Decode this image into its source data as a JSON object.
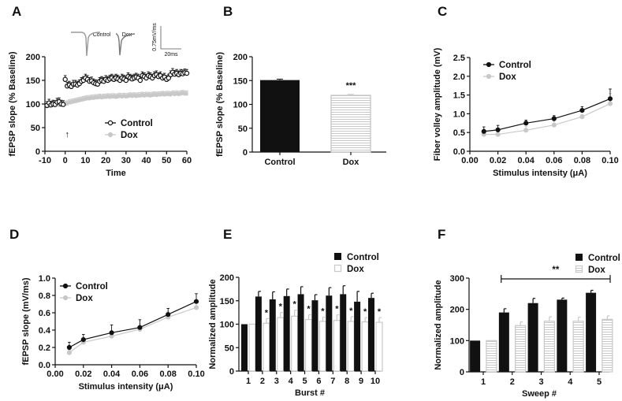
{
  "colors": {
    "control": "#111111",
    "dox": "#c8c8c8"
  },
  "chart_data": [
    {
      "panel": "A",
      "type": "line",
      "xlabel": "Time",
      "ylabel": "fEPSP slope (% Baseline)",
      "xlim": [
        -10,
        60
      ],
      "ylim": [
        0,
        200
      ],
      "xticks": [
        -10,
        0,
        10,
        20,
        30,
        40,
        50,
        60
      ],
      "yticks": [
        0,
        50,
        100,
        150,
        200
      ],
      "legend": [
        "Control",
        "Dox"
      ],
      "legend_position": "lower-right",
      "annotation": "↑",
      "inset": {
        "labels": [
          "Control",
          "Dox"
        ],
        "scale_y": "0.75mV/ms",
        "scale_x": "20ms"
      },
      "x": [
        -9,
        -8,
        -7,
        -6,
        -5,
        -4,
        -3,
        -2,
        -1,
        0,
        1,
        2,
        3,
        4,
        5,
        6,
        7,
        8,
        9,
        10,
        11,
        12,
        13,
        14,
        15,
        16,
        17,
        18,
        19,
        20,
        21,
        22,
        23,
        24,
        25,
        26,
        27,
        28,
        29,
        30,
        31,
        32,
        33,
        34,
        35,
        36,
        37,
        38,
        39,
        40,
        41,
        42,
        43,
        44,
        45,
        46,
        47,
        48,
        49,
        50,
        51,
        52,
        53,
        54,
        55,
        56,
        57,
        58,
        59,
        60
      ],
      "series": [
        {
          "name": "Control",
          "error": 8,
          "values": [
            97,
            102,
            98,
            100,
            99,
            104,
            105,
            100,
            99,
            152,
            138,
            140,
            137,
            142,
            142,
            140,
            143,
            148,
            150,
            155,
            152,
            148,
            149,
            145,
            143,
            142,
            148,
            150,
            148,
            152,
            150,
            153,
            155,
            152,
            155,
            153,
            150,
            155,
            153,
            150,
            158,
            155,
            153,
            155,
            157,
            155,
            150,
            160,
            158,
            155,
            160,
            158,
            155,
            160,
            162,
            158,
            160,
            155,
            157,
            152,
            155,
            162,
            167,
            163,
            165,
            162,
            165,
            164,
            166,
            165
          ]
        },
        {
          "name": "Dox",
          "error": 6,
          "values": [
            95,
            96,
            97,
            98,
            97,
            99,
            98,
            99,
            98,
            100,
            101,
            103,
            104,
            105,
            106,
            107,
            108,
            109,
            110,
            111,
            112,
            112,
            113,
            113,
            114,
            114,
            115,
            114,
            115,
            115,
            116,
            115,
            116,
            116,
            115,
            116,
            117,
            116,
            117,
            116,
            117,
            118,
            117,
            118,
            117,
            118,
            118,
            119,
            118,
            119,
            119,
            118,
            119,
            120,
            119,
            120,
            120,
            121,
            120,
            121,
            121,
            120,
            122,
            121,
            122,
            121,
            122,
            123,
            122,
            122
          ]
        }
      ]
    },
    {
      "panel": "B",
      "type": "bar",
      "ylabel": "fEPSP slope (% Baseline)",
      "ylim": [
        0,
        200
      ],
      "yticks": [
        0,
        50,
        100,
        150,
        200
      ],
      "categories": [
        "Control",
        "Dox"
      ],
      "values": [
        151,
        119
      ],
      "errors": [
        2,
        2
      ],
      "annotation": "***"
    },
    {
      "panel": "C",
      "type": "line",
      "xlabel": "Stimulus intensity (μA)",
      "ylabel": "Fiber volley amplitude (mV)",
      "xlim": [
        0,
        0.1
      ],
      "ylim": [
        0,
        2.5
      ],
      "xticks": [
        "0.00",
        "0.02",
        "0.04",
        "0.06",
        "0.08",
        "0.10"
      ],
      "yticks": [
        "0.0",
        "0.5",
        "1.0",
        "1.5",
        "2.0",
        "2.5"
      ],
      "legend": [
        "Control",
        "Dox"
      ],
      "legend_position": "top-left",
      "x": [
        0.01,
        0.02,
        0.04,
        0.06,
        0.08,
        0.1
      ],
      "series": [
        {
          "name": "Control",
          "values": [
            0.53,
            0.57,
            0.75,
            0.87,
            1.09,
            1.4
          ],
          "errors": [
            0.12,
            0.12,
            0.08,
            0.08,
            0.1,
            0.26
          ]
        },
        {
          "name": "Dox",
          "values": [
            0.45,
            0.45,
            0.56,
            0.7,
            0.92,
            1.27
          ],
          "errors": [
            0.06,
            0.05,
            0.1,
            0.1,
            0.06,
            0.27
          ]
        }
      ]
    },
    {
      "panel": "D",
      "type": "line",
      "xlabel": "Stimulus intensity (μA)",
      "ylabel": "fEPSP slope (mV/ms)",
      "xlim": [
        0,
        0.1
      ],
      "ylim": [
        0,
        1.0
      ],
      "xticks": [
        "0.00",
        "0.02",
        "0.04",
        "0.06",
        "0.08",
        "0.10"
      ],
      "yticks": [
        "0.0",
        "0.2",
        "0.4",
        "0.6",
        "0.8",
        "1.0"
      ],
      "legend": [
        "Control",
        "Dox"
      ],
      "legend_position": "top-left",
      "x": [
        0.01,
        0.02,
        0.04,
        0.06,
        0.08,
        0.1
      ],
      "series": [
        {
          "name": "Control",
          "values": [
            0.2,
            0.29,
            0.37,
            0.43,
            0.58,
            0.73
          ],
          "errors": [
            0.06,
            0.06,
            0.09,
            0.09,
            0.07,
            0.09
          ]
        },
        {
          "name": "Dox",
          "values": [
            0.14,
            0.26,
            0.33,
            0.41,
            0.55,
            0.66
          ],
          "errors": [
            0.03,
            0.05,
            0.05,
            0.06,
            0.06,
            0.08
          ]
        }
      ]
    },
    {
      "panel": "E",
      "type": "bar",
      "xlabel": "Burst #",
      "ylabel": "Normalized amplitude",
      "ylim": [
        0,
        200
      ],
      "yticks": [
        0,
        50,
        100,
        150,
        200
      ],
      "categories": [
        "1",
        "2",
        "3",
        "4",
        "5",
        "6",
        "7",
        "8",
        "9",
        "10"
      ],
      "legend": [
        "Control",
        "Dox"
      ],
      "legend_position": "top-right",
      "series": [
        {
          "name": "Control",
          "values": [
            100,
            159,
            153,
            160,
            164,
            151,
            161,
            164,
            148,
            156
          ],
          "errors": [
            0,
            11,
            16,
            15,
            16,
            12,
            17,
            18,
            22,
            10
          ]
        },
        {
          "name": "Dox",
          "values": [
            100,
            102,
            114,
            117,
            110,
            106,
            108,
            106,
            105,
            104
          ],
          "errors": [
            0,
            10,
            11,
            13,
            10,
            9,
            12,
            10,
            9,
            10
          ]
        }
      ],
      "annotation": "*"
    },
    {
      "panel": "F",
      "type": "bar",
      "xlabel": "Sweep #",
      "ylabel": "Normalized amplitude",
      "ylim": [
        0,
        300
      ],
      "yticks": [
        0,
        100,
        200,
        300
      ],
      "categories": [
        "1",
        "2",
        "3",
        "4",
        "5"
      ],
      "legend": [
        "Control",
        "Dox"
      ],
      "legend_position": "top-right",
      "series": [
        {
          "name": "Control",
          "values": [
            100,
            190,
            220,
            231,
            253
          ],
          "errors": [
            0,
            12,
            15,
            5,
            8
          ]
        },
        {
          "name": "Dox",
          "values": [
            100,
            148,
            162,
            162,
            168
          ],
          "errors": [
            0,
            12,
            14,
            13,
            11
          ]
        }
      ],
      "annotation": "**"
    }
  ]
}
